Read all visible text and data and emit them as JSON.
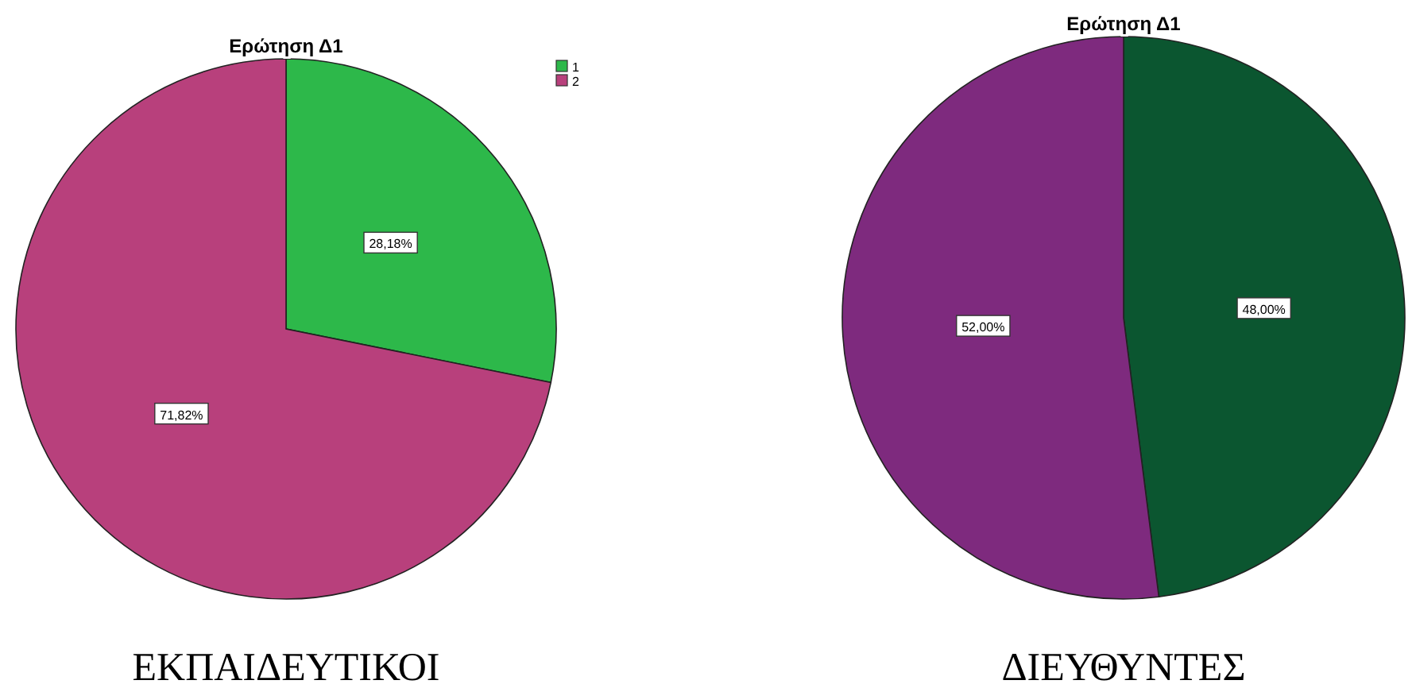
{
  "chart_data": [
    {
      "type": "pie",
      "title": "Ερώτηση Δ1",
      "categories": [
        "1",
        "2"
      ],
      "values": [
        28.18,
        71.82
      ],
      "colors": [
        "#2db84a",
        "#b8407c"
      ],
      "value_labels": [
        "28,18%",
        "71,82%"
      ],
      "legend": "top right",
      "annotations": [
        "ΕΚΠΑΙΔΕΥΤΙΚΟΙ"
      ]
    },
    {
      "type": "pie",
      "title": "Ερώτηση Δ1",
      "categories": [
        null,
        null
      ],
      "values": [
        48,
        52
      ],
      "colors": [
        "#0b5630",
        "#7e2a7e"
      ],
      "value_labels": [
        "48,00%",
        "52,00%"
      ],
      "annotations": [
        "ΔΙΕΥΘΥΝΤΕΣ"
      ]
    }
  ]
}
